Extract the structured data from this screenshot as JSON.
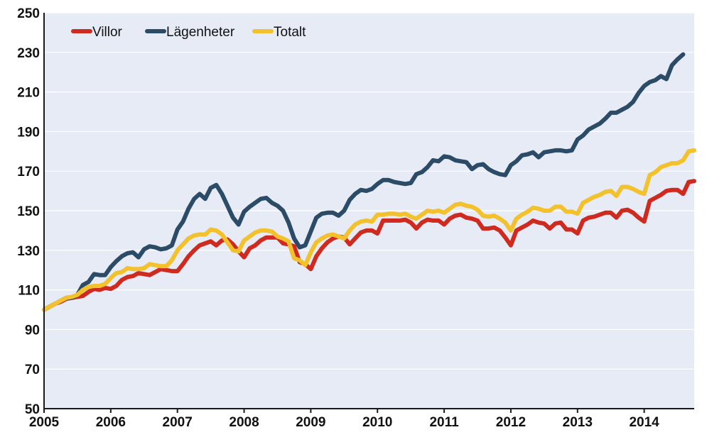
{
  "chart_data": {
    "type": "line",
    "title": "",
    "xlabel": "",
    "ylabel": "",
    "xlim": [
      2005.0,
      2014.75
    ],
    "ylim": [
      50,
      250
    ],
    "x_ticks": [
      "2005",
      "2006",
      "2007",
      "2008",
      "2009",
      "2010",
      "2011",
      "2012",
      "2013",
      "2014"
    ],
    "y_ticks": [
      "50",
      "70",
      "90",
      "110",
      "130",
      "150",
      "170",
      "190",
      "210",
      "230",
      "250"
    ],
    "grid": true,
    "legend_position": "top-left",
    "x_step": "month",
    "x_start": "2005-01",
    "colors": {
      "background": "#e6ebf6",
      "grid": "#ffffff",
      "axis": "#1a1a1a"
    },
    "series": [
      {
        "name": "Villor",
        "color": "#cf2a1f",
        "values": [
          100,
          101.5,
          103,
          104,
          105.5,
          106,
          106.5,
          107,
          109,
          110.5,
          110,
          111,
          110.5,
          112,
          115,
          116.5,
          117,
          118.5,
          118,
          117.5,
          119,
          120.5,
          120,
          119.5,
          119.5,
          123,
          127,
          130,
          132.5,
          133.5,
          134.5,
          132.5,
          135,
          135.5,
          133,
          129.5,
          126.5,
          131,
          132.5,
          135,
          136.5,
          136.5,
          136.5,
          133.5,
          133,
          132,
          124,
          123,
          120.5,
          127,
          131,
          134,
          136,
          137,
          136.5,
          133,
          136,
          139,
          140,
          140,
          138.5,
          145,
          145,
          145,
          145,
          145.5,
          144,
          141,
          144,
          145.5,
          145,
          145,
          143,
          146,
          147.5,
          148,
          146.5,
          146,
          145,
          141,
          141,
          141.5,
          140,
          136.5,
          132.5,
          140,
          141.5,
          143,
          145,
          144,
          143.5,
          141,
          143.5,
          144,
          140.5,
          140.5,
          138.5,
          145,
          146.5,
          147,
          148,
          149,
          149,
          146.5,
          150,
          150.5,
          149,
          146.5,
          144.5,
          155,
          156.5,
          158,
          160,
          160.5,
          160.5,
          158.5,
          164.5,
          165
        ]
      },
      {
        "name": "Lägenheter",
        "color": "#2b4b66",
        "values": [
          100,
          101.5,
          103,
          104.5,
          106,
          106,
          107.5,
          112.5,
          114,
          118,
          117.5,
          117.5,
          121.5,
          124.5,
          127,
          128.5,
          129,
          126.5,
          130.5,
          132,
          131.5,
          130.5,
          131,
          132.5,
          140.5,
          144.5,
          151,
          156,
          158.5,
          156,
          161.5,
          163,
          158.5,
          152.5,
          146.5,
          143,
          149.5,
          152,
          154,
          156,
          156.5,
          154,
          152.5,
          150,
          144,
          136,
          131.5,
          132.5,
          139.5,
          146.5,
          148.5,
          149,
          149,
          147.5,
          150,
          155.5,
          158.5,
          160.5,
          160,
          161,
          163.5,
          165.5,
          165.5,
          164.5,
          164,
          163.5,
          164,
          168.5,
          169.5,
          172,
          175.5,
          175,
          177.5,
          177,
          175.5,
          175,
          174.5,
          171,
          173,
          173.5,
          171,
          169.5,
          168.5,
          168,
          173,
          175,
          178,
          178.5,
          179.5,
          177,
          179.5,
          180,
          180.5,
          180.5,
          180,
          180.5,
          186,
          188,
          191,
          192.5,
          194,
          196.5,
          199.5,
          199.5,
          201,
          202.5,
          205,
          209.5,
          213,
          215,
          216,
          218,
          216.5,
          223.5,
          226.5,
          229
        ]
      },
      {
        "name": "Totalt",
        "color": "#f2c12b",
        "values": [
          100,
          101.5,
          103,
          104.5,
          106,
          106.5,
          107.5,
          110,
          111.5,
          112,
          112,
          113,
          116,
          118.5,
          119,
          121,
          120.5,
          120.5,
          121,
          123,
          122.5,
          122,
          122,
          125,
          130,
          133,
          136,
          137.5,
          138,
          138,
          140.5,
          140,
          138,
          134,
          130,
          129.5,
          135,
          137,
          139,
          140,
          140,
          139.5,
          137,
          136,
          134.5,
          126,
          125,
          122.5,
          129,
          134,
          136,
          137.5,
          138,
          137,
          136,
          140,
          143,
          144.5,
          145,
          144.5,
          148,
          148,
          148.5,
          148.5,
          148,
          148.5,
          147,
          146,
          148,
          150,
          149.5,
          150,
          149,
          151,
          153,
          153.5,
          152.5,
          152,
          150.5,
          147.5,
          147,
          147.5,
          146,
          144,
          140,
          146,
          148,
          149.5,
          151.5,
          151,
          150,
          150,
          152,
          152,
          149.5,
          149.5,
          148.5,
          154,
          155.5,
          157,
          158,
          159.5,
          160,
          157.5,
          162,
          162,
          161,
          159.5,
          158.5,
          168,
          169.5,
          172,
          173,
          174,
          174,
          175.5,
          180,
          180.5
        ]
      }
    ]
  }
}
